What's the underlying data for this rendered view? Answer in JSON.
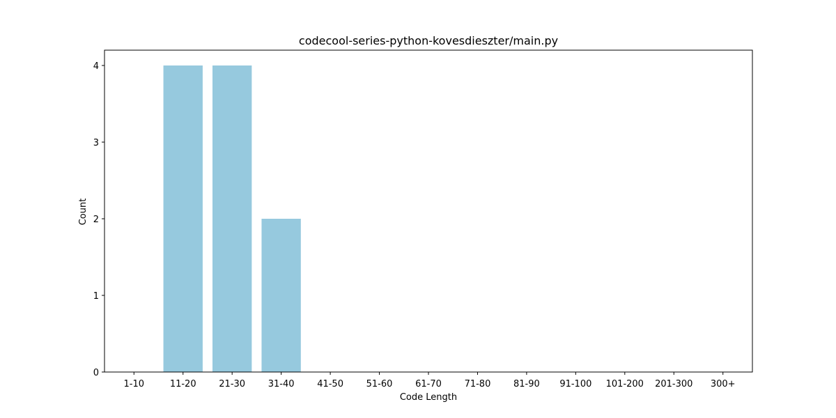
{
  "chart_data": {
    "type": "bar",
    "title": "codecool-series-python-kovesdieszter/main.py",
    "xlabel": "Code Length",
    "ylabel": "Count",
    "categories": [
      "1-10",
      "11-20",
      "21-30",
      "31-40",
      "41-50",
      "51-60",
      "61-70",
      "71-80",
      "81-90",
      "91-100",
      "101-200",
      "201-300",
      "300+"
    ],
    "values": [
      0,
      4,
      4,
      2,
      0,
      0,
      0,
      0,
      0,
      0,
      0,
      0,
      0
    ],
    "ylim": [
      0,
      4.2
    ],
    "yticks": [
      0,
      1,
      2,
      3,
      4
    ],
    "bar_color": "#96c9de",
    "grid": false,
    "legend": "none"
  }
}
